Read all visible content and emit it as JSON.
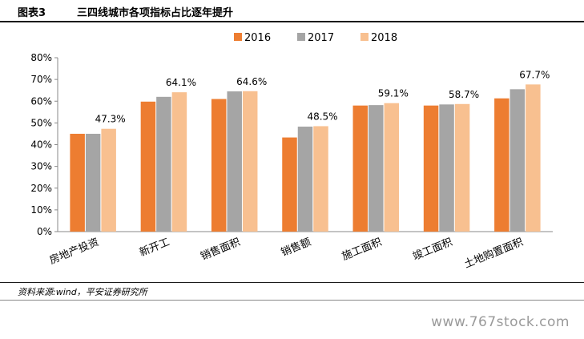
{
  "header": {
    "figure_label": "图表3",
    "title": "三四线城市各项指标占比逐年提升"
  },
  "chart_data": {
    "type": "bar",
    "title": "三四线城市各项指标占比逐年提升",
    "categories": [
      "房地产投资",
      "新开工",
      "销售面积",
      "销售额",
      "施工面积",
      "竣工面积",
      "土地购置面积"
    ],
    "series": [
      {
        "name": "2016",
        "color": "#ED7D31",
        "values": [
          45.0,
          59.8,
          61.0,
          43.3,
          58.0,
          58.0,
          61.3
        ]
      },
      {
        "name": "2017",
        "color": "#A5A5A5",
        "values": [
          45.0,
          62.0,
          64.5,
          48.3,
          58.2,
          58.5,
          65.5
        ]
      },
      {
        "name": "2018",
        "color": "#F8C090",
        "values": [
          47.3,
          64.1,
          64.6,
          48.5,
          59.1,
          58.7,
          67.7
        ]
      }
    ],
    "data_labels": [
      "47.3%",
      "64.1%",
      "64.6%",
      "48.5%",
      "59.1%",
      "58.7%",
      "67.7%"
    ],
    "y_ticks": [
      "0%",
      "10%",
      "20%",
      "30%",
      "40%",
      "50%",
      "60%",
      "70%",
      "80%"
    ],
    "ylim": [
      0,
      80
    ],
    "grid": false,
    "legend_position": "top-center"
  },
  "footer": {
    "source": "资料来源:wind，平安证券研究所",
    "watermark": "www.767stock.com"
  }
}
